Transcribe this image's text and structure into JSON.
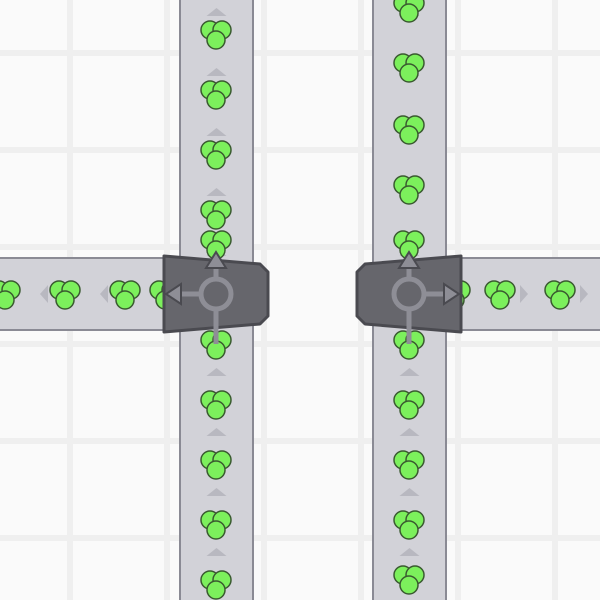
{
  "colors": {
    "background": "#fafafa",
    "grid_line": "#efefef",
    "belt": "#d2d2d8",
    "belt_border": "#8a8a94",
    "belt_arrow": "#b8b8c0",
    "splitter_body": "#66666c",
    "splitter_border": "#4a4a50",
    "splitter_arrow": "#8e8e96",
    "item_fill": "#7cf05c",
    "item_border": "#3a5a30"
  },
  "items": {
    "shape": "three-circle-cluster",
    "color": "green"
  },
  "splitters": [
    {
      "name": "left-splitter",
      "outputs": [
        "up",
        "left"
      ]
    },
    {
      "name": "right-splitter",
      "outputs": [
        "up",
        "right"
      ]
    }
  ]
}
